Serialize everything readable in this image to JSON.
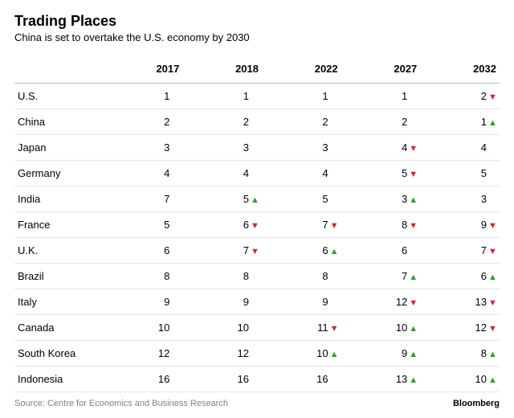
{
  "title": "Trading Places",
  "subtitle": "China is set to overtake the U.S. economy by 2030",
  "years": [
    "2017",
    "2018",
    "2022",
    "2027",
    "2032"
  ],
  "colors": {
    "up": "#2ca02c",
    "down": "#d62728",
    "border": "#e5e5e5",
    "header_border": "#c0c0c0",
    "text": "#000000",
    "footer_text": "#808080",
    "background": "#ffffff"
  },
  "font": {
    "family": "Arial",
    "title_size": 18,
    "subtitle_size": 13,
    "body_size": 13,
    "footer_size": 11
  },
  "rows": [
    {
      "country": "U.S.",
      "ranks": [
        {
          "v": 1
        },
        {
          "v": 1
        },
        {
          "v": 1
        },
        {
          "v": 1
        },
        {
          "v": 2,
          "d": "down"
        }
      ]
    },
    {
      "country": "China",
      "ranks": [
        {
          "v": 2
        },
        {
          "v": 2
        },
        {
          "v": 2
        },
        {
          "v": 2
        },
        {
          "v": 1,
          "d": "up"
        }
      ]
    },
    {
      "country": "Japan",
      "ranks": [
        {
          "v": 3
        },
        {
          "v": 3
        },
        {
          "v": 3
        },
        {
          "v": 4,
          "d": "down"
        },
        {
          "v": 4
        }
      ]
    },
    {
      "country": "Germany",
      "ranks": [
        {
          "v": 4
        },
        {
          "v": 4
        },
        {
          "v": 4
        },
        {
          "v": 5,
          "d": "down"
        },
        {
          "v": 5
        }
      ]
    },
    {
      "country": "India",
      "ranks": [
        {
          "v": 7
        },
        {
          "v": 5,
          "d": "up"
        },
        {
          "v": 5
        },
        {
          "v": 3,
          "d": "up"
        },
        {
          "v": 3
        }
      ]
    },
    {
      "country": "France",
      "ranks": [
        {
          "v": 5
        },
        {
          "v": 6,
          "d": "down"
        },
        {
          "v": 7,
          "d": "down"
        },
        {
          "v": 8,
          "d": "down"
        },
        {
          "v": 9,
          "d": "down"
        }
      ]
    },
    {
      "country": "U.K.",
      "ranks": [
        {
          "v": 6
        },
        {
          "v": 7,
          "d": "down"
        },
        {
          "v": 6,
          "d": "up"
        },
        {
          "v": 6
        },
        {
          "v": 7,
          "d": "down"
        }
      ]
    },
    {
      "country": "Brazil",
      "ranks": [
        {
          "v": 8
        },
        {
          "v": 8
        },
        {
          "v": 8
        },
        {
          "v": 7,
          "d": "up"
        },
        {
          "v": 6,
          "d": "up"
        }
      ]
    },
    {
      "country": "Italy",
      "ranks": [
        {
          "v": 9
        },
        {
          "v": 9
        },
        {
          "v": 9
        },
        {
          "v": 12,
          "d": "down"
        },
        {
          "v": 13,
          "d": "down"
        }
      ]
    },
    {
      "country": "Canada",
      "ranks": [
        {
          "v": 10
        },
        {
          "v": 10
        },
        {
          "v": 11,
          "d": "down"
        },
        {
          "v": 10,
          "d": "up"
        },
        {
          "v": 12,
          "d": "down"
        }
      ]
    },
    {
      "country": "South Korea",
      "ranks": [
        {
          "v": 12
        },
        {
          "v": 12
        },
        {
          "v": 10,
          "d": "up"
        },
        {
          "v": 9,
          "d": "up"
        },
        {
          "v": 8,
          "d": "up"
        }
      ]
    },
    {
      "country": "Indonesia",
      "ranks": [
        {
          "v": 16
        },
        {
          "v": 16
        },
        {
          "v": 16
        },
        {
          "v": 13,
          "d": "up"
        },
        {
          "v": 10,
          "d": "up"
        }
      ]
    }
  ],
  "source": "Source: Centre for Economics and Business Research",
  "brand": "Bloomberg"
}
